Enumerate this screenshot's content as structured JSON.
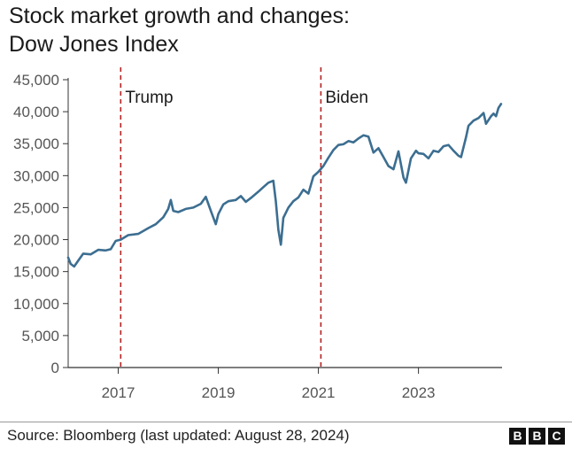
{
  "title_line1": "Stock market growth and changes:",
  "title_line2": "Dow Jones Index",
  "source": "Source: Bloomberg (last updated: August 28, 2024)",
  "logo": [
    "B",
    "B",
    "C"
  ],
  "colors": {
    "series": "#3c6e91",
    "marker": "#b22222",
    "axis": "#333333",
    "grid": "#cccccc"
  },
  "chart_data": {
    "type": "line",
    "title": "Stock market growth and changes: Dow Jones Index",
    "xlabel": "",
    "ylabel": "",
    "xlim": [
      2016.0,
      2024.67
    ],
    "ylim": [
      0,
      45000
    ],
    "grid": false,
    "y_ticks": [
      0,
      5000,
      10000,
      15000,
      20000,
      25000,
      30000,
      35000,
      40000,
      45000
    ],
    "y_tick_labels": [
      "0",
      "5,000",
      "10,000",
      "15,000",
      "20,000",
      "25,000",
      "30,000",
      "35,000",
      "40,000",
      "45,000"
    ],
    "x_ticks": [
      2017,
      2019,
      2021,
      2023
    ],
    "x_tick_labels": [
      "2017",
      "2019",
      "2021",
      "2023"
    ],
    "annotations": [
      {
        "x": 2017.05,
        "label": "Trump"
      },
      {
        "x": 2021.05,
        "label": "Biden"
      }
    ],
    "series": [
      {
        "name": "",
        "x": [
          2016.0,
          2016.05,
          2016.12,
          2016.2,
          2016.3,
          2016.45,
          2016.6,
          2016.75,
          2016.85,
          2016.95,
          2017.05,
          2017.2,
          2017.4,
          2017.6,
          2017.75,
          2017.9,
          2018.0,
          2018.05,
          2018.1,
          2018.2,
          2018.35,
          2018.5,
          2018.65,
          2018.75,
          2018.85,
          2018.95,
          2019.0,
          2019.1,
          2019.2,
          2019.35,
          2019.45,
          2019.55,
          2019.65,
          2019.8,
          2019.9,
          2020.0,
          2020.1,
          2020.15,
          2020.2,
          2020.25,
          2020.3,
          2020.4,
          2020.5,
          2020.6,
          2020.7,
          2020.8,
          2020.9,
          2021.0,
          2021.1,
          2021.2,
          2021.3,
          2021.4,
          2021.5,
          2021.6,
          2021.7,
          2021.8,
          2021.9,
          2022.0,
          2022.1,
          2022.2,
          2022.3,
          2022.4,
          2022.5,
          2022.6,
          2022.7,
          2022.75,
          2022.85,
          2022.95,
          2023.0,
          2023.1,
          2023.2,
          2023.3,
          2023.4,
          2023.5,
          2023.6,
          2023.7,
          2023.8,
          2023.85,
          2023.95,
          2024.0,
          2024.1,
          2024.2,
          2024.3,
          2024.35,
          2024.45,
          2024.5,
          2024.55,
          2024.6,
          2024.65
        ],
        "values": [
          17200,
          16200,
          15800,
          16700,
          17800,
          17700,
          18400,
          18300,
          18500,
          19800,
          20000,
          20700,
          20900,
          21800,
          22400,
          23500,
          24800,
          26200,
          24500,
          24300,
          24800,
          25000,
          25600,
          26700,
          24500,
          22400,
          24000,
          25500,
          26000,
          26200,
          26800,
          25900,
          26500,
          27500,
          28200,
          28900,
          29200,
          26000,
          21500,
          19200,
          23400,
          25000,
          26000,
          26600,
          27800,
          27200,
          29900,
          30600,
          31500,
          32800,
          34000,
          34800,
          34900,
          35400,
          35200,
          35800,
          36300,
          36100,
          33600,
          34300,
          32900,
          31500,
          31000,
          33800,
          29700,
          28900,
          32700,
          33900,
          33500,
          33400,
          32700,
          33900,
          33700,
          34600,
          34800,
          33900,
          33100,
          32900,
          36000,
          37800,
          38600,
          39000,
          39800,
          38100,
          39300,
          39700,
          39300,
          40600,
          41200
        ]
      }
    ]
  }
}
